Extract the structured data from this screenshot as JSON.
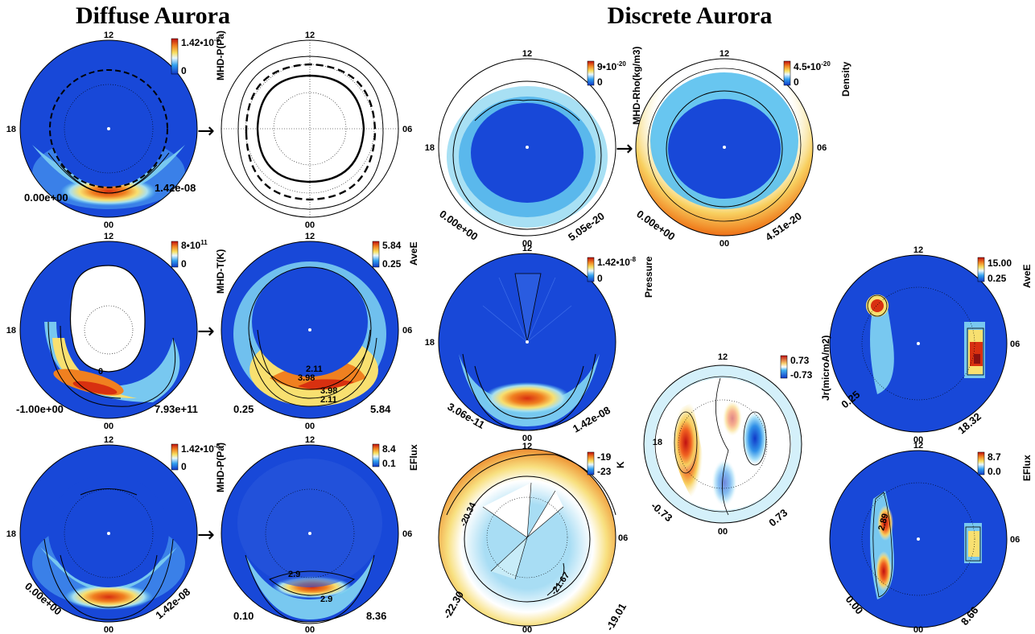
{
  "titles": {
    "left": "Diffuse Aurora",
    "right": "Discrete Aurora"
  },
  "colors": {
    "background_blue": "#1848d8",
    "mid_cyan": "#58c8f0",
    "peak_red": "#d83010",
    "cbar_top": "#c01010",
    "cbar_bottom": "#1038c8"
  },
  "panels": {
    "p1": {
      "top": "12",
      "bottom": "00",
      "left": "18",
      "right": "",
      "min": "0.00e+00",
      "max": "1.42e-08",
      "cb_max": "1.42•10",
      "cb_max_exp": "-8",
      "cb_min": "0",
      "unit": "MHD-P(Pa)",
      "contours": []
    },
    "p2": {
      "top": "12",
      "bottom": "00",
      "left": "",
      "right": "06",
      "min": "",
      "max": "",
      "cb_max": "",
      "cb_max_exp": "",
      "cb_min": "",
      "unit": "",
      "contours": []
    },
    "p3": {
      "top": "12",
      "bottom": "00",
      "left": "18",
      "right": "06",
      "min": "0.00e+00",
      "max": "5.05e-20",
      "cb_max": "9•10",
      "cb_max_exp": "-20",
      "cb_min": "0",
      "unit": "MHD-Rho(kg/m3)",
      "contours": []
    },
    "p4": {
      "top": "12",
      "bottom": "00",
      "left": "",
      "right": "06",
      "min": "0.00e+00",
      "max": "4.51e-20",
      "cb_max": "4.5•10",
      "cb_max_exp": "-20",
      "cb_min": "0",
      "unit": "Density",
      "contours": []
    },
    "p5": {
      "top": "12",
      "bottom": "00",
      "left": "18",
      "right": "",
      "min": "-1.00e+00",
      "max": "7.93e+11",
      "cb_max": "8•10",
      "cb_max_exp": "11",
      "cb_min": "0",
      "unit": "MHD-T(K)",
      "contours": [
        "0"
      ]
    },
    "p6": {
      "top": "12",
      "bottom": "00",
      "left": "",
      "right": "06",
      "min": "0.25",
      "max": "5.84",
      "cb_max": "5.84",
      "cb_max_exp": "",
      "cb_min": "0.25",
      "unit": "AveE",
      "contours": [
        "2.11",
        "3.98",
        "3.98",
        "2.11"
      ]
    },
    "p7": {
      "top": "12",
      "bottom": "00",
      "left": "18",
      "right": "",
      "min": "3.06e-11",
      "max": "1.42e-08",
      "cb_max": "1.42•10",
      "cb_max_exp": "-8",
      "cb_min": "0",
      "unit": "Pressure",
      "contours": []
    },
    "p8": {
      "top": "12",
      "bottom": "00",
      "left": "",
      "right": "06",
      "min": "0.25",
      "max": "18.32",
      "cb_max": "15.00",
      "cb_max_exp": "",
      "cb_min": "0.25",
      "unit": "AveE",
      "contours": []
    },
    "p9": {
      "top": "12",
      "bottom": "00",
      "left": "18",
      "right": "",
      "min": "-0.73",
      "max": "0.73",
      "cb_max": "0.73",
      "cb_max_exp": "",
      "cb_min": "-0.73",
      "unit": "Jr(microA/m2)",
      "contours": []
    },
    "p10": {
      "top": "12",
      "bottom": "00",
      "left": "18",
      "right": "",
      "min": "0.00e+00",
      "max": "1.42e-08",
      "cb_max": "1.42•10",
      "cb_max_exp": "-8",
      "cb_min": "0",
      "unit": "MHD-P(Pa)",
      "contours": []
    },
    "p11": {
      "top": "12",
      "bottom": "00",
      "left": "",
      "right": "06",
      "min": "0.10",
      "max": "8.36",
      "cb_max": "8.4",
      "cb_max_exp": "",
      "cb_min": "0.1",
      "unit": "EFlux",
      "contours": [
        "2.9",
        "2.9"
      ]
    },
    "p12": {
      "top": "12",
      "bottom": "00",
      "left": "",
      "right": "06",
      "min": "-22.30",
      "max": "-19.01",
      "cb_max": "-19",
      "cb_max_exp": "",
      "cb_min": "-23",
      "unit": "K",
      "contours": [
        "-20.34",
        "-21.67"
      ]
    },
    "p13": {
      "top": "12",
      "bottom": "00",
      "left": "",
      "right": "06",
      "min": "0.00",
      "max": "8.66",
      "cb_max": "8.7",
      "cb_max_exp": "",
      "cb_min": "0.0",
      "unit": "EFlux",
      "contours": [
        "2.89"
      ]
    }
  }
}
